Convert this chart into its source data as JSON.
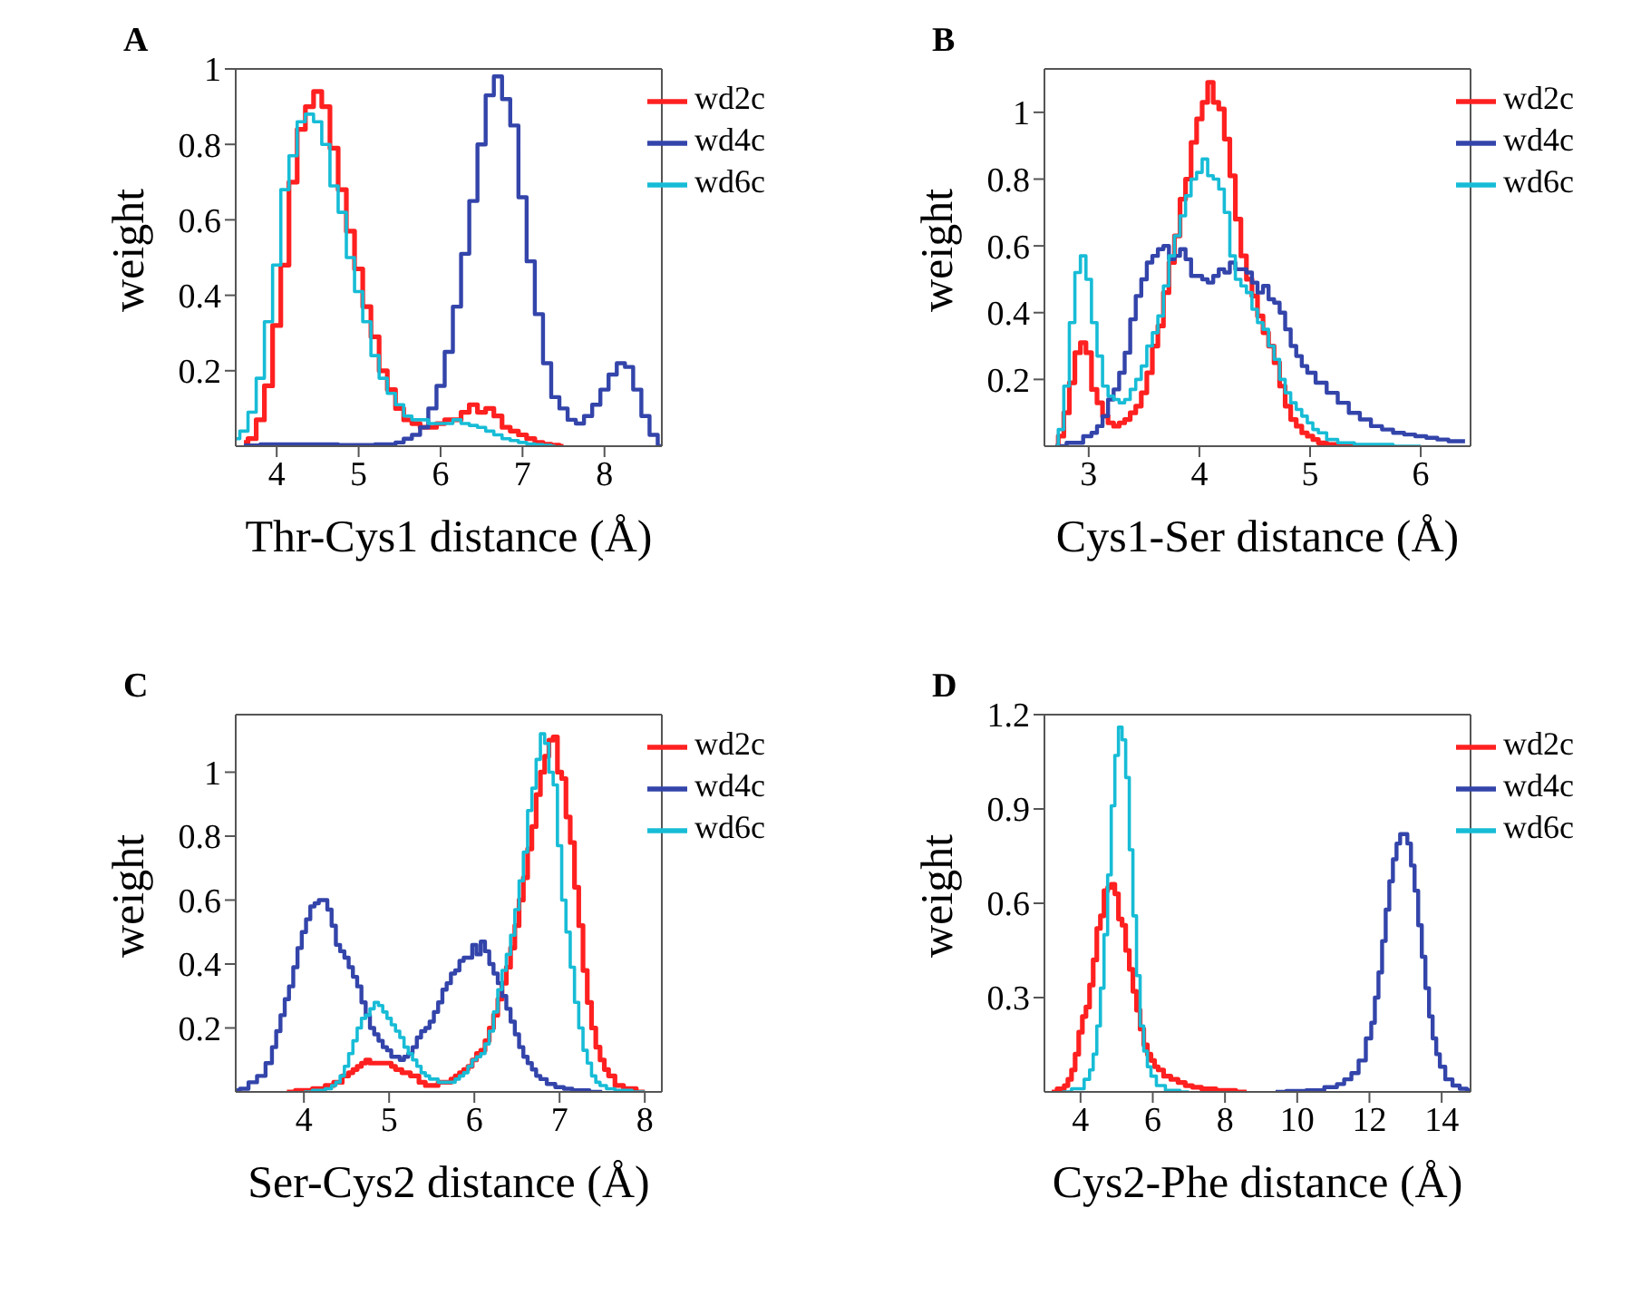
{
  "chart_data": [
    {
      "type": "step",
      "title": "A",
      "xlabel": "Thr-Cys1 distance (Å)",
      "ylabel": "weight",
      "xlim": [
        3.5,
        8.7
      ],
      "ylim": [
        0,
        1
      ],
      "xticks": [
        4,
        5,
        6,
        7,
        8
      ],
      "yticks": [
        0.2,
        0.4,
        0.6,
        0.8,
        1
      ],
      "legend": "top right",
      "series": [
        {
          "name": "wd2c",
          "color": "#ff2020",
          "x": [
            3.6,
            3.7,
            3.8,
            3.9,
            4.0,
            4.1,
            4.2,
            4.3,
            4.4,
            4.5,
            4.6,
            4.7,
            4.8,
            4.9,
            5.0,
            5.1,
            5.2,
            5.3,
            5.4,
            5.5,
            5.6,
            5.7,
            5.8,
            5.9,
            6.0,
            6.1,
            6.2,
            6.3,
            6.4,
            6.5,
            6.6,
            6.7,
            6.8,
            6.9,
            7.0,
            7.1,
            7.2,
            7.3,
            7.4,
            7.5
          ],
          "values": [
            0.01,
            0.02,
            0.07,
            0.16,
            0.32,
            0.48,
            0.7,
            0.84,
            0.9,
            0.94,
            0.9,
            0.79,
            0.68,
            0.57,
            0.47,
            0.37,
            0.29,
            0.2,
            0.15,
            0.1,
            0.07,
            0.06,
            0.05,
            0.05,
            0.06,
            0.07,
            0.07,
            0.09,
            0.11,
            0.09,
            0.1,
            0.08,
            0.05,
            0.04,
            0.03,
            0.02,
            0.01,
            0.005,
            0.003,
            0
          ]
        },
        {
          "name": "wd4c",
          "color": "#3344aa",
          "x": [
            3.6,
            4.0,
            4.5,
            5.0,
            5.4,
            5.5,
            5.6,
            5.7,
            5.8,
            5.9,
            6.0,
            6.1,
            6.2,
            6.3,
            6.4,
            6.5,
            6.6,
            6.7,
            6.8,
            6.9,
            7.0,
            7.1,
            7.2,
            7.3,
            7.4,
            7.5,
            7.6,
            7.7,
            7.8,
            7.9,
            8.0,
            8.1,
            8.2,
            8.3,
            8.4,
            8.5,
            8.6,
            8.7
          ],
          "values": [
            0.002,
            0.005,
            0.005,
            0.003,
            0.005,
            0.01,
            0.02,
            0.03,
            0.05,
            0.1,
            0.16,
            0.25,
            0.37,
            0.51,
            0.65,
            0.8,
            0.93,
            0.98,
            0.92,
            0.85,
            0.66,
            0.49,
            0.35,
            0.22,
            0.13,
            0.1,
            0.07,
            0.06,
            0.08,
            0.11,
            0.15,
            0.19,
            0.22,
            0.21,
            0.15,
            0.08,
            0.03,
            0
          ]
        },
        {
          "name": "wd6c",
          "color": "#17bcd6",
          "x": [
            3.5,
            3.6,
            3.7,
            3.8,
            3.9,
            4.0,
            4.1,
            4.2,
            4.3,
            4.4,
            4.5,
            4.6,
            4.7,
            4.8,
            4.9,
            5.0,
            5.1,
            5.2,
            5.3,
            5.4,
            5.5,
            5.6,
            5.7,
            5.8,
            5.9,
            6.0,
            6.1,
            6.2,
            6.3,
            6.4,
            6.5,
            6.6,
            6.7,
            6.8,
            6.9,
            7.0,
            7.1,
            7.2,
            7.3,
            7.4
          ],
          "values": [
            0.02,
            0.04,
            0.09,
            0.18,
            0.33,
            0.48,
            0.68,
            0.77,
            0.86,
            0.88,
            0.86,
            0.8,
            0.69,
            0.62,
            0.5,
            0.41,
            0.33,
            0.24,
            0.18,
            0.14,
            0.11,
            0.08,
            0.07,
            0.07,
            0.06,
            0.06,
            0.06,
            0.07,
            0.06,
            0.055,
            0.05,
            0.04,
            0.03,
            0.02,
            0.015,
            0.01,
            0.006,
            0.004,
            0.002,
            0
          ]
        }
      ]
    },
    {
      "type": "step",
      "title": "B",
      "xlabel": "Cys1-Ser distance (Å)",
      "ylabel": "weight",
      "xlim": [
        2.6,
        6.45
      ],
      "ylim": [
        0,
        1.13
      ],
      "xticks": [
        3,
        4,
        5,
        6
      ],
      "yticks": [
        0.2,
        0.4,
        0.6,
        0.8,
        1
      ],
      "legend": "top right",
      "series": [
        {
          "name": "wd2c",
          "color": "#ff2020",
          "x": [
            2.7,
            2.75,
            2.8,
            2.85,
            2.9,
            2.95,
            3.0,
            3.05,
            3.1,
            3.15,
            3.2,
            3.25,
            3.3,
            3.35,
            3.4,
            3.45,
            3.5,
            3.55,
            3.6,
            3.65,
            3.7,
            3.75,
            3.8,
            3.85,
            3.9,
            3.95,
            4.0,
            4.05,
            4.1,
            4.15,
            4.2,
            4.25,
            4.3,
            4.35,
            4.4,
            4.45,
            4.5,
            4.55,
            4.6,
            4.65,
            4.7,
            4.75,
            4.8,
            4.85,
            4.9,
            4.95,
            5.0,
            5.05,
            5.1,
            5.2,
            5.6
          ],
          "values": [
            0,
            0.03,
            0.1,
            0.19,
            0.28,
            0.31,
            0.28,
            0.17,
            0.13,
            0.09,
            0.07,
            0.06,
            0.07,
            0.08,
            0.1,
            0.12,
            0.16,
            0.22,
            0.3,
            0.36,
            0.46,
            0.55,
            0.63,
            0.74,
            0.8,
            0.91,
            0.98,
            1.03,
            1.09,
            1.03,
            1.01,
            0.92,
            0.81,
            0.68,
            0.57,
            0.5,
            0.45,
            0.39,
            0.34,
            0.3,
            0.25,
            0.18,
            0.12,
            0.08,
            0.06,
            0.04,
            0.03,
            0.02,
            0.01,
            0.005,
            0
          ]
        },
        {
          "name": "wd4c",
          "color": "#3344aa",
          "x": [
            2.7,
            2.9,
            3.0,
            3.05,
            3.1,
            3.15,
            3.2,
            3.25,
            3.3,
            3.35,
            3.4,
            3.45,
            3.5,
            3.55,
            3.6,
            3.65,
            3.7,
            3.75,
            3.8,
            3.85,
            3.9,
            3.95,
            4.0,
            4.05,
            4.1,
            4.15,
            4.2,
            4.25,
            4.3,
            4.35,
            4.4,
            4.45,
            4.5,
            4.55,
            4.6,
            4.65,
            4.7,
            4.75,
            4.8,
            4.85,
            4.9,
            4.95,
            5.0,
            5.1,
            5.2,
            5.3,
            5.4,
            5.5,
            5.6,
            5.7,
            5.8,
            5.9,
            6.0,
            6.1,
            6.2,
            6.3,
            6.4
          ],
          "values": [
            0,
            0.01,
            0.03,
            0.04,
            0.06,
            0.09,
            0.14,
            0.17,
            0.22,
            0.28,
            0.38,
            0.45,
            0.5,
            0.55,
            0.57,
            0.59,
            0.6,
            0.56,
            0.57,
            0.59,
            0.56,
            0.51,
            0.51,
            0.5,
            0.49,
            0.51,
            0.53,
            0.52,
            0.55,
            0.53,
            0.53,
            0.52,
            0.49,
            0.46,
            0.48,
            0.44,
            0.43,
            0.4,
            0.35,
            0.3,
            0.27,
            0.24,
            0.22,
            0.19,
            0.16,
            0.13,
            0.1,
            0.08,
            0.06,
            0.05,
            0.04,
            0.035,
            0.03,
            0.025,
            0.02,
            0.015,
            0.015
          ]
        },
        {
          "name": "wd6c",
          "color": "#17bcd6",
          "x": [
            2.7,
            2.75,
            2.8,
            2.85,
            2.9,
            2.95,
            3.0,
            3.05,
            3.1,
            3.15,
            3.2,
            3.25,
            3.3,
            3.35,
            3.4,
            3.45,
            3.5,
            3.55,
            3.6,
            3.65,
            3.7,
            3.75,
            3.8,
            3.85,
            3.9,
            3.95,
            4.0,
            4.05,
            4.1,
            4.15,
            4.2,
            4.25,
            4.3,
            4.35,
            4.4,
            4.45,
            4.5,
            4.55,
            4.6,
            4.65,
            4.7,
            4.75,
            4.8,
            4.85,
            4.9,
            4.95,
            5.0,
            5.05,
            5.1,
            5.2,
            5.3,
            5.5,
            6.0
          ],
          "values": [
            0,
            0.05,
            0.18,
            0.37,
            0.52,
            0.57,
            0.5,
            0.37,
            0.27,
            0.18,
            0.15,
            0.14,
            0.13,
            0.14,
            0.17,
            0.2,
            0.24,
            0.3,
            0.34,
            0.39,
            0.48,
            0.57,
            0.63,
            0.69,
            0.75,
            0.8,
            0.82,
            0.86,
            0.81,
            0.8,
            0.77,
            0.7,
            0.57,
            0.5,
            0.48,
            0.46,
            0.41,
            0.37,
            0.35,
            0.3,
            0.26,
            0.2,
            0.16,
            0.13,
            0.11,
            0.09,
            0.07,
            0.05,
            0.04,
            0.02,
            0.01,
            0.005,
            0
          ]
        }
      ]
    },
    {
      "type": "step",
      "title": "C",
      "xlabel": "Ser-Cys2 distance (Å)",
      "ylabel": "weight",
      "xlim": [
        3.2,
        8.2
      ],
      "ylim": [
        0,
        1.18
      ],
      "xticks": [
        4,
        5,
        6,
        7,
        8
      ],
      "yticks": [
        0.2,
        0.4,
        0.6,
        0.8,
        1
      ],
      "legend": "top right",
      "series": [
        {
          "name": "wd2c",
          "color": "#ff2020",
          "x": [
            3.8,
            4.0,
            4.2,
            4.3,
            4.4,
            4.5,
            4.55,
            4.6,
            4.65,
            4.7,
            4.75,
            4.8,
            4.85,
            4.9,
            4.95,
            5.0,
            5.05,
            5.1,
            5.2,
            5.3,
            5.4,
            5.45,
            5.5,
            5.55,
            5.6,
            5.7,
            5.75,
            5.8,
            5.85,
            5.9,
            5.95,
            6.0,
            6.05,
            6.1,
            6.15,
            6.2,
            6.25,
            6.3,
            6.35,
            6.4,
            6.45,
            6.5,
            6.55,
            6.6,
            6.65,
            6.7,
            6.75,
            6.8,
            6.85,
            6.9,
            6.95,
            7.0,
            7.05,
            7.1,
            7.15,
            7.2,
            7.25,
            7.3,
            7.35,
            7.4,
            7.45,
            7.5,
            7.55,
            7.6,
            7.7,
            7.8,
            8.0
          ],
          "values": [
            0,
            0.005,
            0.01,
            0.02,
            0.03,
            0.05,
            0.06,
            0.07,
            0.08,
            0.09,
            0.1,
            0.09,
            0.09,
            0.09,
            0.09,
            0.09,
            0.08,
            0.07,
            0.06,
            0.05,
            0.03,
            0.02,
            0.02,
            0.02,
            0.03,
            0.03,
            0.04,
            0.05,
            0.06,
            0.07,
            0.08,
            0.1,
            0.12,
            0.13,
            0.16,
            0.2,
            0.24,
            0.29,
            0.34,
            0.39,
            0.45,
            0.52,
            0.6,
            0.67,
            0.76,
            0.83,
            0.93,
            1.0,
            1.05,
            1.1,
            1.11,
            1.0,
            0.98,
            0.86,
            0.78,
            0.64,
            0.52,
            0.38,
            0.28,
            0.2,
            0.14,
            0.1,
            0.07,
            0.05,
            0.02,
            0.01,
            0
          ]
        },
        {
          "name": "wd4c",
          "color": "#3344aa",
          "x": [
            3.2,
            3.3,
            3.4,
            3.5,
            3.6,
            3.65,
            3.7,
            3.75,
            3.8,
            3.85,
            3.9,
            3.95,
            4.0,
            4.05,
            4.1,
            4.15,
            4.2,
            4.25,
            4.3,
            4.35,
            4.4,
            4.45,
            4.5,
            4.55,
            4.6,
            4.65,
            4.7,
            4.75,
            4.8,
            4.85,
            4.9,
            4.95,
            5.0,
            5.05,
            5.1,
            5.15,
            5.2,
            5.25,
            5.3,
            5.35,
            5.4,
            5.45,
            5.5,
            5.55,
            5.6,
            5.65,
            5.7,
            5.75,
            5.8,
            5.85,
            5.9,
            5.95,
            6.0,
            6.05,
            6.1,
            6.15,
            6.2,
            6.25,
            6.3,
            6.35,
            6.4,
            6.45,
            6.5,
            6.55,
            6.6,
            6.65,
            6.7,
            6.75,
            6.8,
            6.9,
            7.0,
            7.1,
            7.2,
            7.5
          ],
          "values": [
            0.005,
            0.01,
            0.03,
            0.05,
            0.09,
            0.14,
            0.19,
            0.24,
            0.29,
            0.33,
            0.39,
            0.45,
            0.5,
            0.54,
            0.58,
            0.59,
            0.6,
            0.6,
            0.57,
            0.52,
            0.46,
            0.44,
            0.42,
            0.39,
            0.36,
            0.33,
            0.28,
            0.24,
            0.2,
            0.18,
            0.16,
            0.14,
            0.13,
            0.11,
            0.11,
            0.1,
            0.11,
            0.12,
            0.14,
            0.17,
            0.19,
            0.2,
            0.22,
            0.25,
            0.28,
            0.32,
            0.34,
            0.37,
            0.38,
            0.41,
            0.42,
            0.42,
            0.46,
            0.43,
            0.47,
            0.44,
            0.4,
            0.37,
            0.34,
            0.3,
            0.26,
            0.22,
            0.18,
            0.14,
            0.11,
            0.09,
            0.07,
            0.05,
            0.04,
            0.025,
            0.015,
            0.01,
            0.005,
            0
          ]
        },
        {
          "name": "wd6c",
          "color": "#17bcd6",
          "x": [
            4.0,
            4.2,
            4.3,
            4.35,
            4.4,
            4.45,
            4.5,
            4.55,
            4.6,
            4.65,
            4.7,
            4.75,
            4.8,
            4.85,
            4.9,
            4.95,
            5.0,
            5.05,
            5.1,
            5.15,
            5.2,
            5.25,
            5.3,
            5.35,
            5.4,
            5.45,
            5.5,
            5.55,
            5.6,
            5.65,
            5.7,
            5.75,
            5.8,
            5.85,
            5.9,
            5.95,
            6.0,
            6.05,
            6.1,
            6.15,
            6.2,
            6.25,
            6.3,
            6.35,
            6.4,
            6.45,
            6.5,
            6.55,
            6.6,
            6.65,
            6.7,
            6.75,
            6.8,
            6.85,
            6.9,
            6.95,
            7.0,
            7.05,
            7.1,
            7.15,
            7.2,
            7.25,
            7.3,
            7.35,
            7.4,
            7.45,
            7.5,
            7.6,
            7.7,
            8.0
          ],
          "values": [
            0,
            0.005,
            0.01,
            0.02,
            0.03,
            0.05,
            0.08,
            0.12,
            0.16,
            0.2,
            0.23,
            0.24,
            0.26,
            0.28,
            0.27,
            0.25,
            0.23,
            0.21,
            0.19,
            0.17,
            0.14,
            0.12,
            0.1,
            0.08,
            0.06,
            0.05,
            0.04,
            0.04,
            0.03,
            0.03,
            0.03,
            0.03,
            0.04,
            0.05,
            0.06,
            0.08,
            0.1,
            0.11,
            0.12,
            0.15,
            0.19,
            0.25,
            0.32,
            0.38,
            0.43,
            0.49,
            0.57,
            0.66,
            0.75,
            0.88,
            0.95,
            1.04,
            1.12,
            1.09,
            1.0,
            0.96,
            0.77,
            0.6,
            0.5,
            0.39,
            0.28,
            0.2,
            0.13,
            0.09,
            0.05,
            0.03,
            0.02,
            0.01,
            0.005,
            0
          ]
        }
      ]
    },
    {
      "type": "step",
      "title": "D",
      "xlabel": "Cys2-Phe distance (Å)",
      "ylabel": "weight",
      "xlim": [
        3,
        14.8
      ],
      "ylim": [
        0,
        1.2
      ],
      "xticks": [
        4,
        6,
        8,
        10,
        12,
        14
      ],
      "yticks": [
        0.3,
        0.6,
        0.9,
        1.2
      ],
      "legend": "top right",
      "series": [
        {
          "name": "wd2c",
          "color": "#ff2020",
          "x": [
            3.2,
            3.5,
            3.6,
            3.7,
            3.8,
            3.9,
            4.0,
            4.1,
            4.2,
            4.3,
            4.4,
            4.5,
            4.6,
            4.7,
            4.8,
            4.9,
            5.0,
            5.1,
            5.2,
            5.3,
            5.4,
            5.5,
            5.6,
            5.7,
            5.8,
            5.9,
            6.0,
            6.1,
            6.2,
            6.4,
            6.6,
            6.8,
            7.0,
            7.2,
            7.5,
            8.0,
            8.6
          ],
          "values": [
            0,
            0.01,
            0.02,
            0.04,
            0.07,
            0.12,
            0.19,
            0.24,
            0.27,
            0.34,
            0.42,
            0.52,
            0.56,
            0.64,
            0.65,
            0.66,
            0.63,
            0.55,
            0.53,
            0.45,
            0.39,
            0.32,
            0.26,
            0.2,
            0.15,
            0.12,
            0.1,
            0.08,
            0.07,
            0.05,
            0.04,
            0.03,
            0.02,
            0.015,
            0.01,
            0.005,
            0
          ]
        },
        {
          "name": "wd4c",
          "color": "#3344aa",
          "x": [
            9.4,
            10.0,
            10.5,
            11.0,
            11.2,
            11.4,
            11.6,
            11.8,
            12.0,
            12.1,
            12.2,
            12.3,
            12.4,
            12.5,
            12.6,
            12.7,
            12.8,
            12.9,
            13.0,
            13.1,
            13.2,
            13.3,
            13.4,
            13.5,
            13.6,
            13.7,
            13.8,
            13.9,
            14.0,
            14.2,
            14.4,
            14.6,
            14.8
          ],
          "values": [
            0,
            0.003,
            0.005,
            0.015,
            0.025,
            0.04,
            0.06,
            0.1,
            0.17,
            0.22,
            0.3,
            0.38,
            0.48,
            0.58,
            0.67,
            0.74,
            0.79,
            0.82,
            0.82,
            0.79,
            0.72,
            0.64,
            0.53,
            0.43,
            0.33,
            0.24,
            0.17,
            0.12,
            0.08,
            0.04,
            0.02,
            0.01,
            0.005
          ]
        },
        {
          "name": "wd6c",
          "color": "#17bcd6",
          "x": [
            3.5,
            4.0,
            4.2,
            4.3,
            4.4,
            4.5,
            4.6,
            4.7,
            4.8,
            4.9,
            5.0,
            5.1,
            5.2,
            5.3,
            5.4,
            5.5,
            5.6,
            5.7,
            5.8,
            5.9,
            6.0,
            6.2,
            6.5,
            7.0
          ],
          "values": [
            0,
            0.01,
            0.04,
            0.07,
            0.12,
            0.21,
            0.33,
            0.5,
            0.69,
            0.91,
            1.07,
            1.16,
            1.12,
            1.0,
            0.77,
            0.56,
            0.37,
            0.21,
            0.13,
            0.08,
            0.05,
            0.02,
            0.005,
            0
          ]
        }
      ]
    }
  ]
}
